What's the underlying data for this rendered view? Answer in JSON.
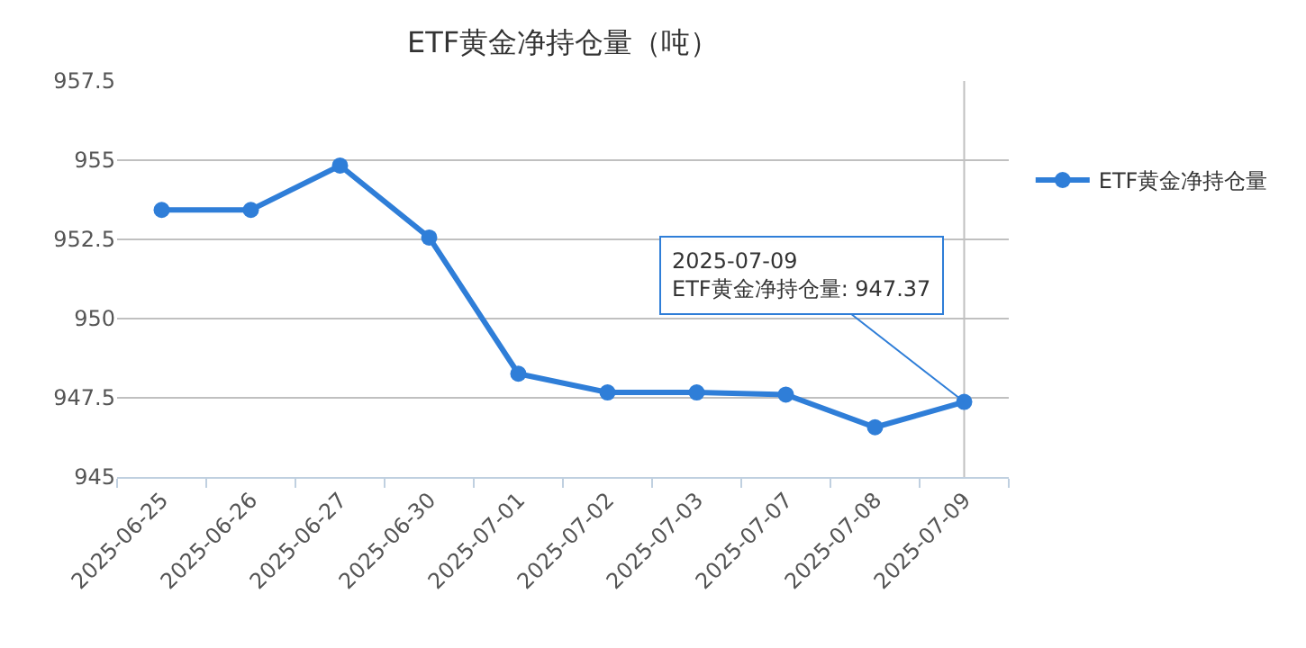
{
  "chart_data": {
    "type": "line",
    "title": "ETF黄金净持仓量（吨）",
    "categories": [
      "2025-06-25",
      "2025-06-26",
      "2025-06-27",
      "2025-06-30",
      "2025-07-01",
      "2025-07-02",
      "2025-07-03",
      "2025-07-07",
      "2025-07-08",
      "2025-07-09"
    ],
    "series": [
      {
        "name": "ETF黄金净持仓量",
        "color": "#2f7ed8",
        "values": [
          953.43,
          953.43,
          954.83,
          952.56,
          948.26,
          947.67,
          947.67,
          947.6,
          946.57,
          947.37
        ]
      }
    ],
    "ylim": [
      945,
      957.5
    ],
    "yticks": [
      945,
      947.5,
      950,
      952.5,
      955,
      957.5
    ],
    "grid": "y",
    "legend": "right",
    "marker": "circle",
    "line_style": "solid",
    "ref_lines": [
      {
        "axis": "x",
        "value": "2025-07-09",
        "color": "#c0c0c0"
      }
    ],
    "annotations": [
      {
        "text": "2025-07-09\nETF黄金净持仓量: 947.37",
        "x": "2025-07-09",
        "y": 947.37
      }
    ]
  }
}
